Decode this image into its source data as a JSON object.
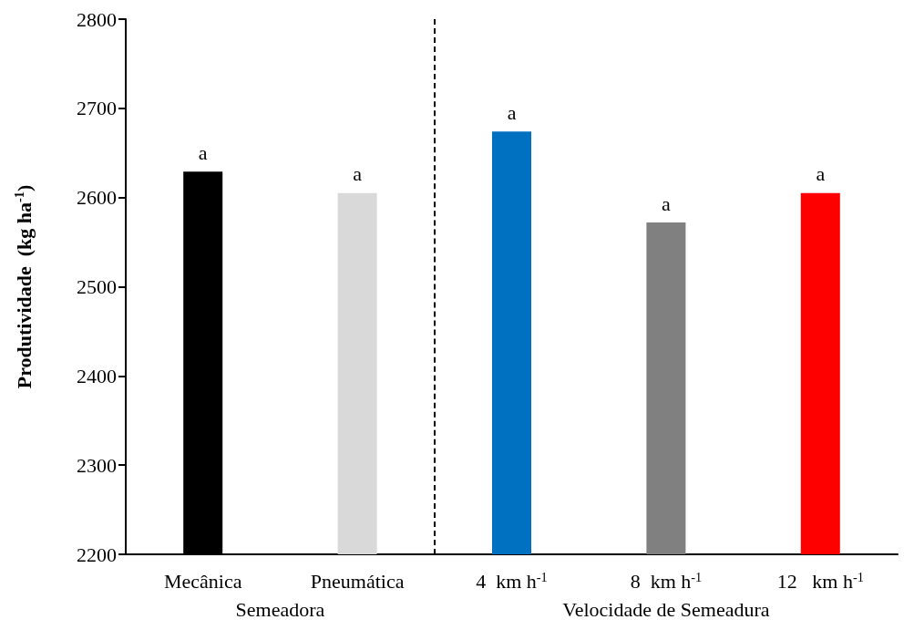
{
  "chart_data": {
    "type": "bar",
    "ylabel": "Produtividade  (kg ha$^{-1}$)",
    "categories": [
      "Mecânica",
      "Pneumática",
      "4  km h$^{-1}$",
      "8  km h$^{-1}$",
      "12   km h$^{-1}$"
    ],
    "values": [
      2629,
      2605,
      2674,
      2572,
      2605
    ],
    "colors": [
      "#000000",
      "#d9d9d9",
      "#0070c0",
      "#808080",
      "#ff0000"
    ],
    "value_labels": [
      "a",
      "a",
      "a",
      "a",
      "a"
    ],
    "ylim": [
      2200,
      2800
    ],
    "yticks": [
      2200,
      2300,
      2400,
      2500,
      2600,
      2700,
      2800
    ],
    "annotations": [
      "Semeadora",
      "Velocidade de Semeadura"
    ],
    "grid": false
  }
}
